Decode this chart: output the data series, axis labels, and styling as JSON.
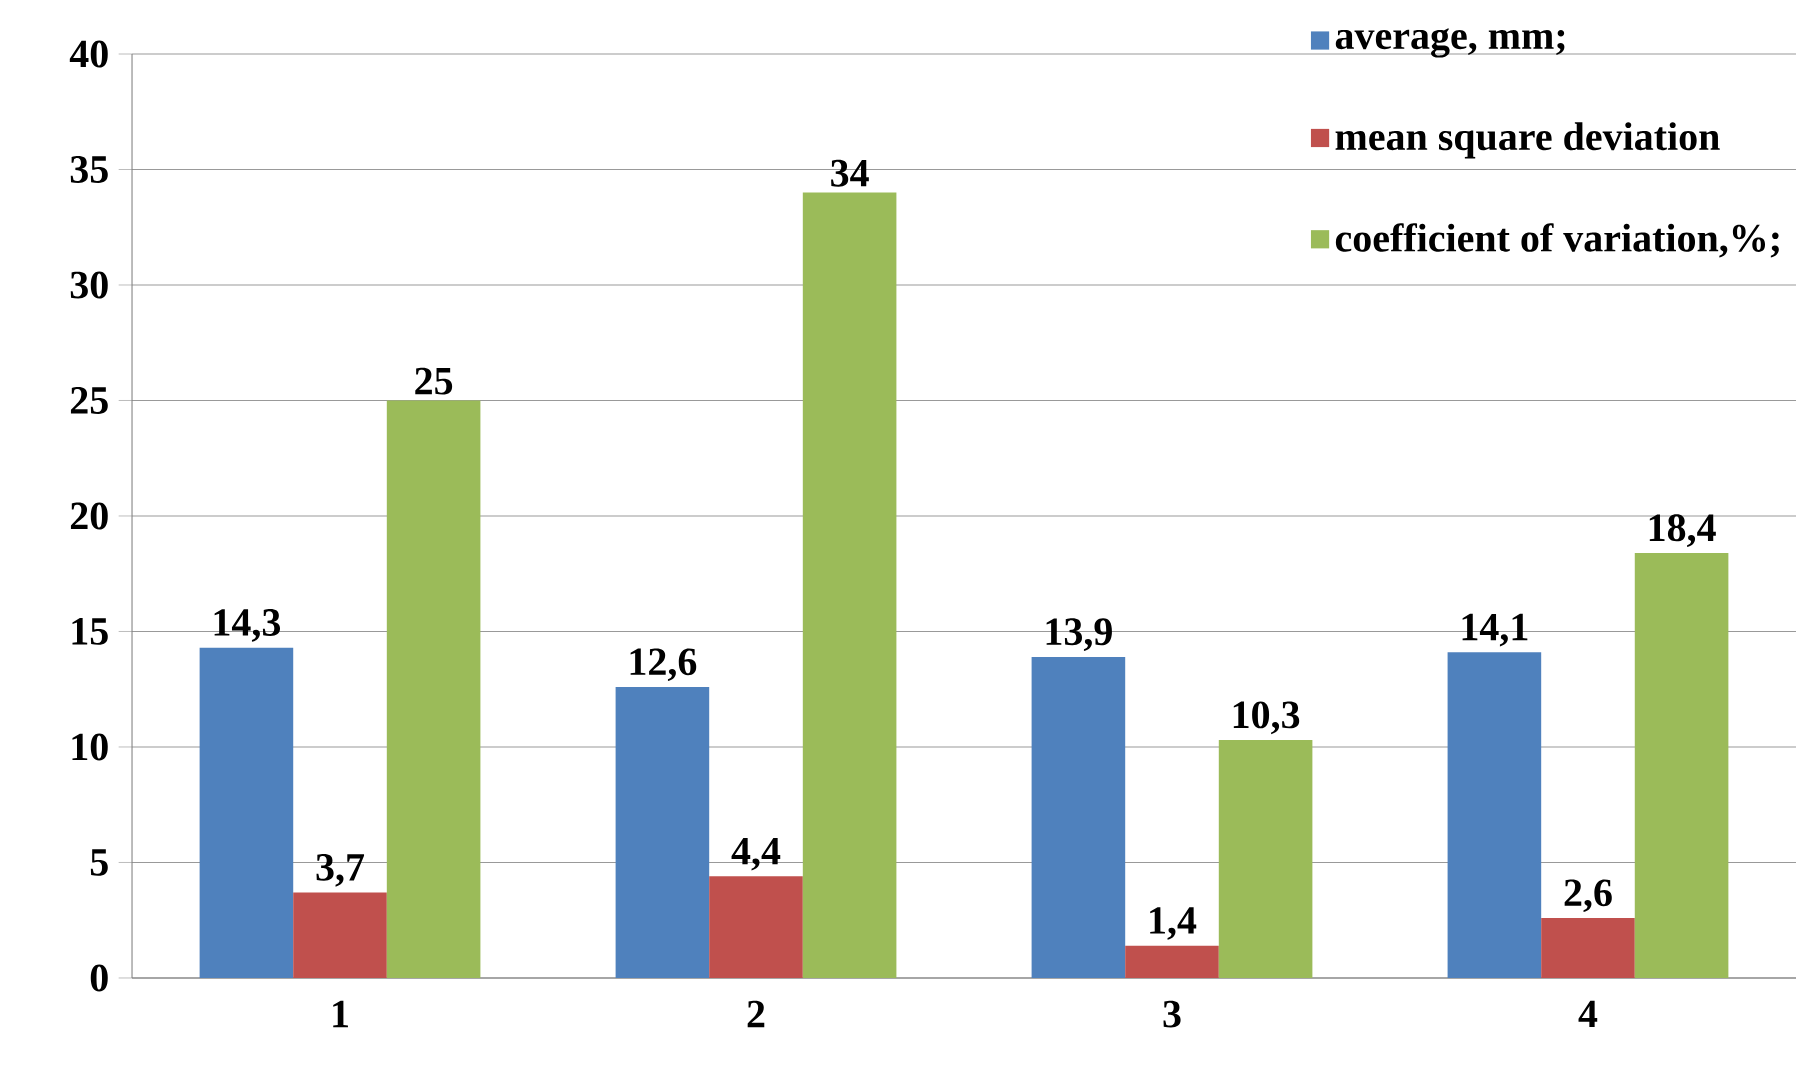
{
  "chart_data": {
    "type": "bar",
    "categories": [
      "1",
      "2",
      "3",
      "4"
    ],
    "series": [
      {
        "name": "average, mm;",
        "color": "#4f81bd",
        "values": [
          14.3,
          12.6,
          13.9,
          14.1
        ],
        "value_labels": [
          "14,3",
          "12,6",
          "13,9",
          "14,1"
        ]
      },
      {
        "name": "mean square deviation",
        "color": "#c0504d",
        "values": [
          3.7,
          4.4,
          1.4,
          2.6
        ],
        "value_labels": [
          "3,7",
          "4,4",
          "1,4",
          "2,6"
        ]
      },
      {
        "name": "coefficient of variation,%;",
        "color": "#9bbb59",
        "values": [
          25,
          34,
          10.3,
          18.4
        ],
        "value_labels": [
          "25",
          "34",
          "10,3",
          "18,4"
        ]
      }
    ],
    "ylim": [
      0,
      40
    ],
    "yticks": [
      0,
      5,
      10,
      15,
      20,
      25,
      30,
      35,
      40
    ],
    "grid": "y",
    "legend": "top right"
  }
}
